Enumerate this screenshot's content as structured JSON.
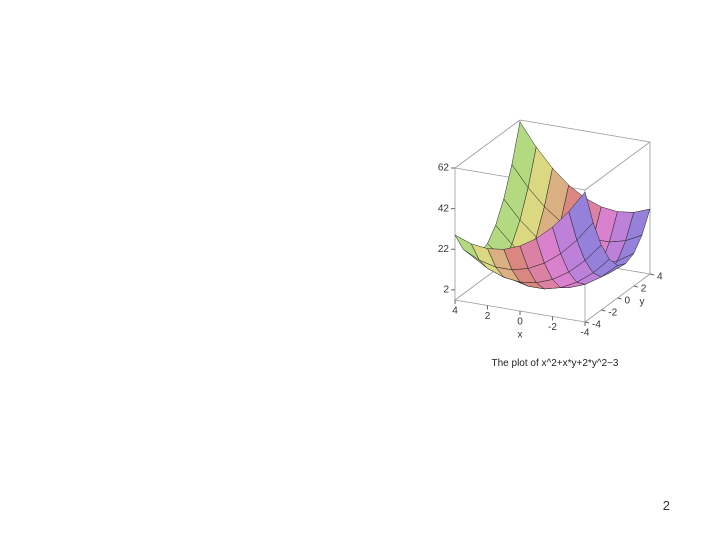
{
  "chart_data": {
    "type": "surface",
    "x": [
      -4,
      -3,
      -2,
      -1,
      0,
      1,
      2,
      3,
      4
    ],
    "y": [
      -4,
      -3,
      -2,
      -1,
      0,
      1,
      2,
      3,
      4
    ],
    "z": [
      [
        61,
        50,
        41,
        34,
        29,
        26,
        25,
        26,
        29
      ],
      [
        43,
        33,
        25,
        19,
        15,
        13,
        13,
        15,
        19
      ],
      [
        29,
        20,
        13,
        8,
        5,
        4,
        5,
        8,
        13
      ],
      [
        19,
        11,
        5,
        1,
        -1,
        -1,
        1,
        5,
        11
      ],
      [
        13,
        6,
        1,
        -2,
        -3,
        -2,
        1,
        6,
        13
      ],
      [
        11,
        5,
        1,
        -1,
        -1,
        1,
        5,
        11,
        19
      ],
      [
        13,
        8,
        5,
        4,
        5,
        8,
        13,
        20,
        29
      ],
      [
        19,
        15,
        13,
        13,
        15,
        19,
        25,
        33,
        43
      ],
      [
        29,
        26,
        25,
        26,
        29,
        34,
        41,
        50,
        61
      ]
    ],
    "xlim": [
      -4,
      4
    ],
    "ylim": [
      -4,
      4
    ],
    "zlim": [
      -3,
      62
    ],
    "xticks": [
      4,
      2,
      0,
      -2,
      -4
    ],
    "yticks": [
      -4,
      -2,
      0,
      2,
      4
    ],
    "zticks": [
      2,
      22,
      42,
      62
    ],
    "xlabel": "x",
    "ylabel": "y",
    "caption": "The plot of x^2+x*y+2*y^2−3"
  },
  "page_number": "2"
}
